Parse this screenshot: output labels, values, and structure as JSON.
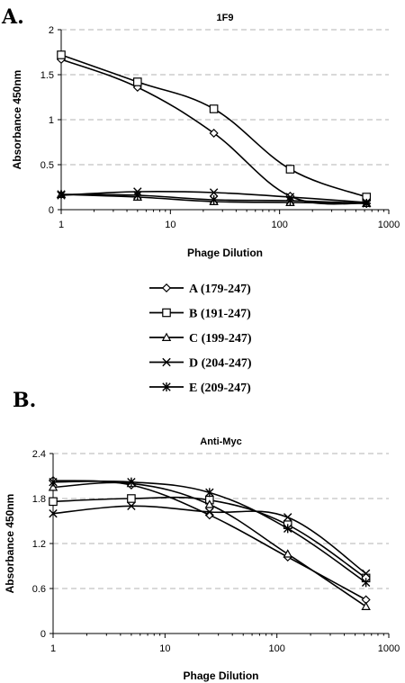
{
  "panels": [
    "A.",
    "B."
  ],
  "legend": [
    {
      "label": "A (179-247)",
      "marker": "diamond"
    },
    {
      "label": "B (191-247)",
      "marker": "square"
    },
    {
      "label": "C (199-247)",
      "marker": "triangle"
    },
    {
      "label": "D (204-247)",
      "marker": "x"
    },
    {
      "label": "E (209-247)",
      "marker": "star"
    }
  ],
  "chart_data": [
    {
      "type": "line",
      "title": "1F9",
      "xlabel": "Phage Dilution",
      "ylabel": "Absorbance 450nm",
      "xscale": "log",
      "xlim": [
        1,
        1000
      ],
      "ylim": [
        0,
        2
      ],
      "xticks": [
        1,
        10,
        100,
        1000
      ],
      "yticks": [
        0,
        0.5,
        1,
        1.5,
        2
      ],
      "ytick_labels": [
        "0",
        "0.5",
        "1",
        "1.5",
        "2"
      ],
      "grid": "horizontal dashed",
      "x": [
        1,
        5,
        25,
        125,
        625
      ],
      "series": [
        {
          "name": "A (179-247)",
          "marker": "diamond",
          "values": [
            1.67,
            1.36,
            0.85,
            0.15,
            0.07
          ]
        },
        {
          "name": "B (191-247)",
          "marker": "square",
          "values": [
            1.72,
            1.42,
            1.12,
            0.45,
            0.14
          ]
        },
        {
          "name": "C (199-247)",
          "marker": "triangle",
          "values": [
            0.17,
            0.14,
            0.09,
            0.08,
            0.07
          ]
        },
        {
          "name": "D (204-247)",
          "marker": "x",
          "values": [
            0.16,
            0.2,
            0.19,
            0.14,
            0.08
          ]
        },
        {
          "name": "E (209-247)",
          "marker": "star",
          "values": [
            0.17,
            0.16,
            0.11,
            0.1,
            0.07
          ]
        }
      ]
    },
    {
      "type": "line",
      "title": "Anti-Myc",
      "xlabel": "Phage Dilution",
      "ylabel": "Absorbance 450nm",
      "xscale": "log",
      "xlim": [
        1,
        1000
      ],
      "ylim": [
        0,
        2.4
      ],
      "xticks": [
        1,
        10,
        100,
        1000
      ],
      "yticks": [
        0,
        0.6,
        1.2,
        1.8,
        2.4
      ],
      "ytick_labels": [
        "0",
        "0.6",
        "1.2",
        "1.8",
        "2.4"
      ],
      "grid": "horizontal dashed",
      "x": [
        1,
        5,
        25,
        125,
        625
      ],
      "series": [
        {
          "name": "A (179-247)",
          "marker": "diamond",
          "values": [
            2.04,
            1.98,
            1.58,
            1.02,
            0.45
          ]
        },
        {
          "name": "B (191-247)",
          "marker": "square",
          "values": [
            1.76,
            1.8,
            1.78,
            1.45,
            0.74
          ]
        },
        {
          "name": "C (199-247)",
          "marker": "triangle",
          "values": [
            1.95,
            2.0,
            1.72,
            1.06,
            0.36
          ]
        },
        {
          "name": "D (204-247)",
          "marker": "x",
          "values": [
            1.6,
            1.7,
            1.62,
            1.55,
            0.8
          ]
        },
        {
          "name": "E (209-247)",
          "marker": "star",
          "values": [
            2.02,
            2.02,
            1.88,
            1.4,
            0.68
          ]
        }
      ]
    }
  ]
}
